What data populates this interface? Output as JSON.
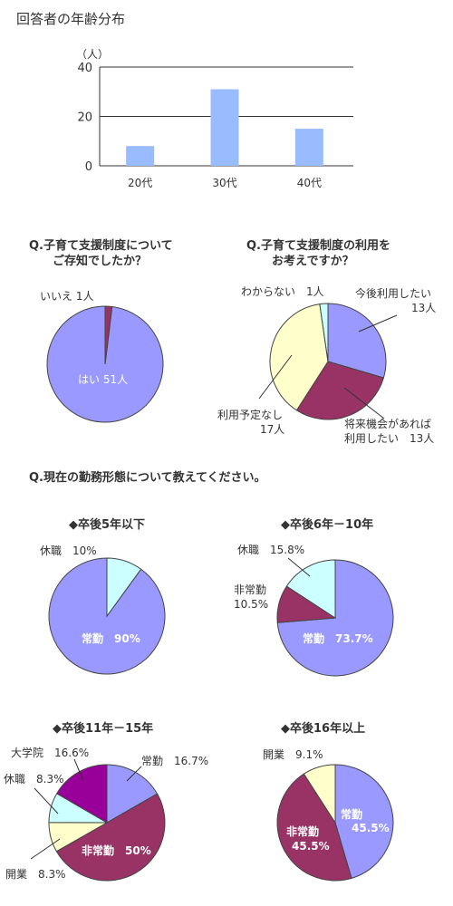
{
  "colors": {
    "periwinkle": "#9999ff",
    "maroon": "#993366",
    "cream": "#ffffcc",
    "cyan": "#ccffff",
    "purple": "#990099",
    "bar": "#99bbff",
    "text": "#333333"
  },
  "chart_data": [
    {
      "type": "bar",
      "title": "回答者の年齢分布",
      "ylabel": "（人）",
      "categories": [
        "20代",
        "30代",
        "40代"
      ],
      "values": [
        8,
        31,
        15
      ],
      "ylim": [
        0,
        40
      ],
      "yticks": [
        "0",
        "20",
        "40"
      ]
    },
    {
      "type": "pie",
      "title_lines": [
        "Q.子育て支援制度について",
        "ご存知でしたか？"
      ],
      "slices": [
        {
          "label": "はい",
          "count_text": "51人",
          "value": 51,
          "color": "#9999ff"
        },
        {
          "label": "いいえ",
          "count_text": "1人",
          "value": 1,
          "color": "#993366"
        }
      ]
    },
    {
      "type": "pie",
      "title_lines": [
        "Q.子育て支援制度の利用を",
        "お考えですか？"
      ],
      "slices": [
        {
          "label_lines": [
            "今後利用したい",
            "13人"
          ],
          "value": 13,
          "color": "#9999ff"
        },
        {
          "label_lines": [
            "将来機会があれば",
            "利用したい　13人"
          ],
          "value": 13,
          "color": "#993366"
        },
        {
          "label_lines": [
            "利用予定なし",
            "17人"
          ],
          "value": 17,
          "color": "#ffffcc"
        },
        {
          "label_lines": [
            "わからない　1人"
          ],
          "value": 1,
          "color": "#ccffff"
        }
      ]
    },
    {
      "type": "pie",
      "section_title": "Q.現在の勤務形態について教えてください。",
      "title": "◆卒後5年以下",
      "slices": [
        {
          "label": "常勤　90%",
          "value": 90,
          "color": "#9999ff"
        },
        {
          "label": "休職　10%",
          "value": 10,
          "color": "#ccffff"
        }
      ]
    },
    {
      "type": "pie",
      "title": "◆卒後6年－10年",
      "slices": [
        {
          "label": "常勤　73.7%",
          "value": 73.7,
          "color": "#9999ff"
        },
        {
          "label_lines": [
            "非常勤",
            "10.5%"
          ],
          "value": 10.5,
          "color": "#993366"
        },
        {
          "label": "休職　15.8%",
          "value": 15.8,
          "color": "#ccffff"
        }
      ]
    },
    {
      "type": "pie",
      "title": "◆卒後11年－15年",
      "slices": [
        {
          "label": "常勤　16.7%",
          "value": 16.7,
          "color": "#9999ff"
        },
        {
          "label": "非常勤　50%",
          "value": 50,
          "color": "#993366"
        },
        {
          "label": "開業　8.3%",
          "value": 8.3,
          "color": "#ffffcc"
        },
        {
          "label": "休職　8.3%",
          "value": 8.3,
          "color": "#ccffff"
        },
        {
          "label": "大学院　16.6%",
          "value": 16.6,
          "color": "#990099"
        }
      ]
    },
    {
      "type": "pie",
      "title": "◆卒後16年以上",
      "slices": [
        {
          "label_lines": [
            "常勤",
            "45.5%"
          ],
          "value": 45.5,
          "color": "#9999ff"
        },
        {
          "label_lines": [
            "非常勤",
            "45.5%"
          ],
          "value": 45.5,
          "color": "#993366"
        },
        {
          "label": "開業　9.1%",
          "value": 9.1,
          "color": "#ffffcc"
        }
      ]
    }
  ]
}
